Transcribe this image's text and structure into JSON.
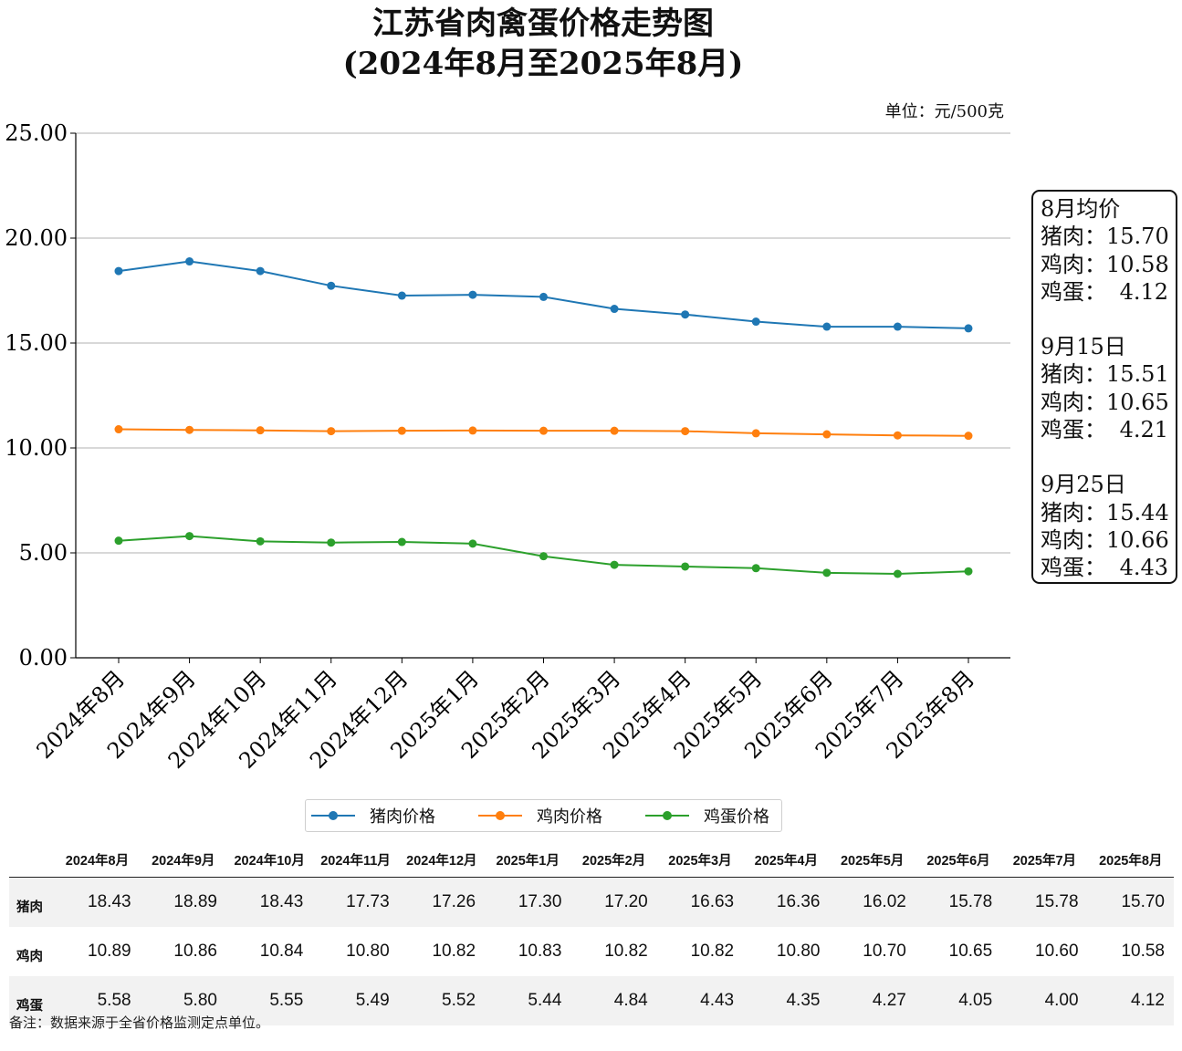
{
  "chart_data": {
    "type": "line",
    "title": "江苏省肉禽蛋价格走势图",
    "subtitle": "(2024年8月至2025年8月)",
    "unit_label": "单位：元/500克",
    "categories": [
      "2024年8月",
      "2024年9月",
      "2024年10月",
      "2024年11月",
      "2024年12月",
      "2025年1月",
      "2025年2月",
      "2025年3月",
      "2025年4月",
      "2025年5月",
      "2025年6月",
      "2025年7月",
      "2025年8月"
    ],
    "series": [
      {
        "name": "猪肉价格",
        "color": "#1f77b4",
        "values": [
          18.43,
          18.89,
          18.43,
          17.73,
          17.26,
          17.3,
          17.2,
          16.63,
          16.36,
          16.02,
          15.78,
          15.78,
          15.7
        ]
      },
      {
        "name": "鸡肉价格",
        "color": "#ff7f0e",
        "values": [
          10.89,
          10.86,
          10.84,
          10.8,
          10.82,
          10.83,
          10.82,
          10.82,
          10.8,
          10.7,
          10.65,
          10.6,
          10.58
        ]
      },
      {
        "name": "鸡蛋价格",
        "color": "#2ca02c",
        "values": [
          5.58,
          5.8,
          5.55,
          5.49,
          5.52,
          5.44,
          4.84,
          4.43,
          4.35,
          4.27,
          4.05,
          4.0,
          4.12
        ]
      }
    ],
    "ylim": [
      0,
      25
    ],
    "yticks": [
      "0.00",
      "5.00",
      "10.00",
      "15.00",
      "20.00",
      "25.00"
    ],
    "grid": "horizontal",
    "legend_position": "bottom-center"
  },
  "info_box": {
    "sections": [
      {
        "heading": "8月均价",
        "rows": [
          {
            "label": "猪肉：",
            "value": "15.70"
          },
          {
            "label": "鸡肉：",
            "value": "10.58"
          },
          {
            "label": "鸡蛋：",
            "value": "4.12"
          }
        ]
      },
      {
        "heading": "9月15日",
        "rows": [
          {
            "label": "猪肉：",
            "value": "15.51"
          },
          {
            "label": "鸡肉：",
            "value": "10.65"
          },
          {
            "label": "鸡蛋：",
            "value": "4.21"
          }
        ]
      },
      {
        "heading": "9月25日",
        "rows": [
          {
            "label": "猪肉：",
            "value": "15.44"
          },
          {
            "label": "鸡肉：",
            "value": "10.66"
          },
          {
            "label": "鸡蛋：",
            "value": "4.43"
          }
        ]
      }
    ]
  },
  "table": {
    "headers": [
      "",
      "2024年8月",
      "2024年9月",
      "2024年10月",
      "2024年11月",
      "2024年12月",
      "2025年1月",
      "2025年2月",
      "2025年3月",
      "2025年4月",
      "2025年5月",
      "2025年6月",
      "2025年7月",
      "2025年8月"
    ],
    "rows": [
      {
        "label": "猪肉",
        "values": [
          "18.43",
          "18.89",
          "18.43",
          "17.73",
          "17.26",
          "17.30",
          "17.20",
          "16.63",
          "16.36",
          "16.02",
          "15.78",
          "15.78",
          "15.70"
        ]
      },
      {
        "label": "鸡肉",
        "values": [
          "10.89",
          "10.86",
          "10.84",
          "10.80",
          "10.82",
          "10.83",
          "10.82",
          "10.82",
          "10.80",
          "10.70",
          "10.65",
          "10.60",
          "10.58"
        ]
      },
      {
        "label": "鸡蛋",
        "values": [
          "5.58",
          "5.80",
          "5.55",
          "5.49",
          "5.52",
          "5.44",
          "4.84",
          "4.43",
          "4.35",
          "4.27",
          "4.05",
          "4.00",
          "4.12"
        ]
      }
    ]
  },
  "note": "备注：数据来源于全省价格监测定点单位。"
}
